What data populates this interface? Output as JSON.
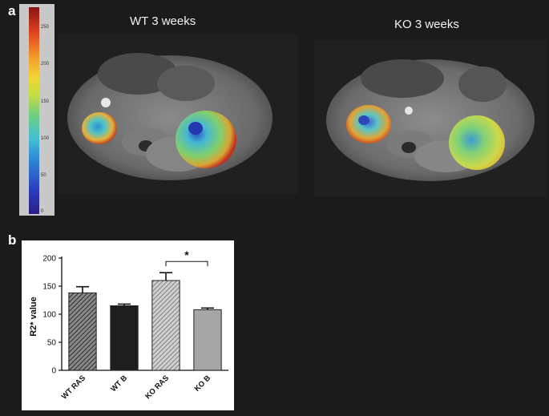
{
  "panel_a": {
    "label": "a",
    "titles": {
      "wt": "WT 3 weeks",
      "ko": "KO 3 weeks"
    },
    "colorbar": {
      "ticks": [
        "250",
        "200",
        "150",
        "100",
        "50",
        "0"
      ]
    }
  },
  "panel_b": {
    "label": "b"
  },
  "chart_data": {
    "type": "bar",
    "categories": [
      "WT RAS",
      "WT B",
      "KO RAS",
      "KO B"
    ],
    "values": [
      138,
      115,
      160,
      108
    ],
    "errors": [
      11,
      3,
      14,
      3
    ],
    "ylabel": "R2* value",
    "ylim": [
      0,
      200
    ],
    "yticks": [
      "0",
      "50",
      "100",
      "150",
      "200"
    ],
    "significance": {
      "between": [
        "KO RAS",
        "KO B"
      ],
      "label": "*"
    },
    "colors": [
      "#6e6e6e",
      "#1e1e1e",
      "#9a9a9a",
      "#a6a6a6"
    ],
    "fills": [
      "hatch-dark",
      "solid",
      "hatch-light",
      "solid"
    ]
  }
}
